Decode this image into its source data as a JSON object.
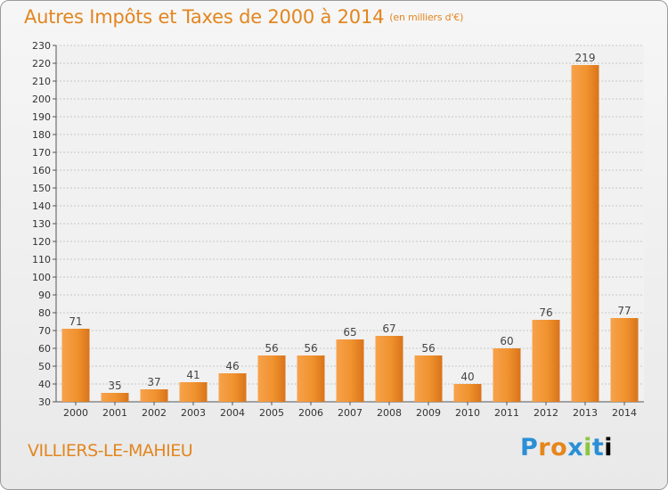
{
  "chart_data": {
    "type": "bar",
    "title": "Autres Impôts et Taxes de 2000 à 2014",
    "subtitle": "(en milliers d'€)",
    "categories": [
      "2000",
      "2001",
      "2002",
      "2003",
      "2004",
      "2005",
      "2006",
      "2007",
      "2008",
      "2009",
      "2010",
      "2011",
      "2012",
      "2013",
      "2014"
    ],
    "values": [
      71,
      35,
      37,
      41,
      46,
      56,
      56,
      65,
      67,
      56,
      40,
      60,
      76,
      219,
      77
    ],
    "ylim": [
      30,
      230
    ],
    "ytick_step": 10,
    "grid": true,
    "bar_color": "#f0922e"
  },
  "footer": {
    "commune": "VILLIERS-LE-MAHIEU",
    "logo_letters": [
      "P",
      "r",
      "o",
      "x",
      "i",
      "t",
      "i"
    ]
  }
}
